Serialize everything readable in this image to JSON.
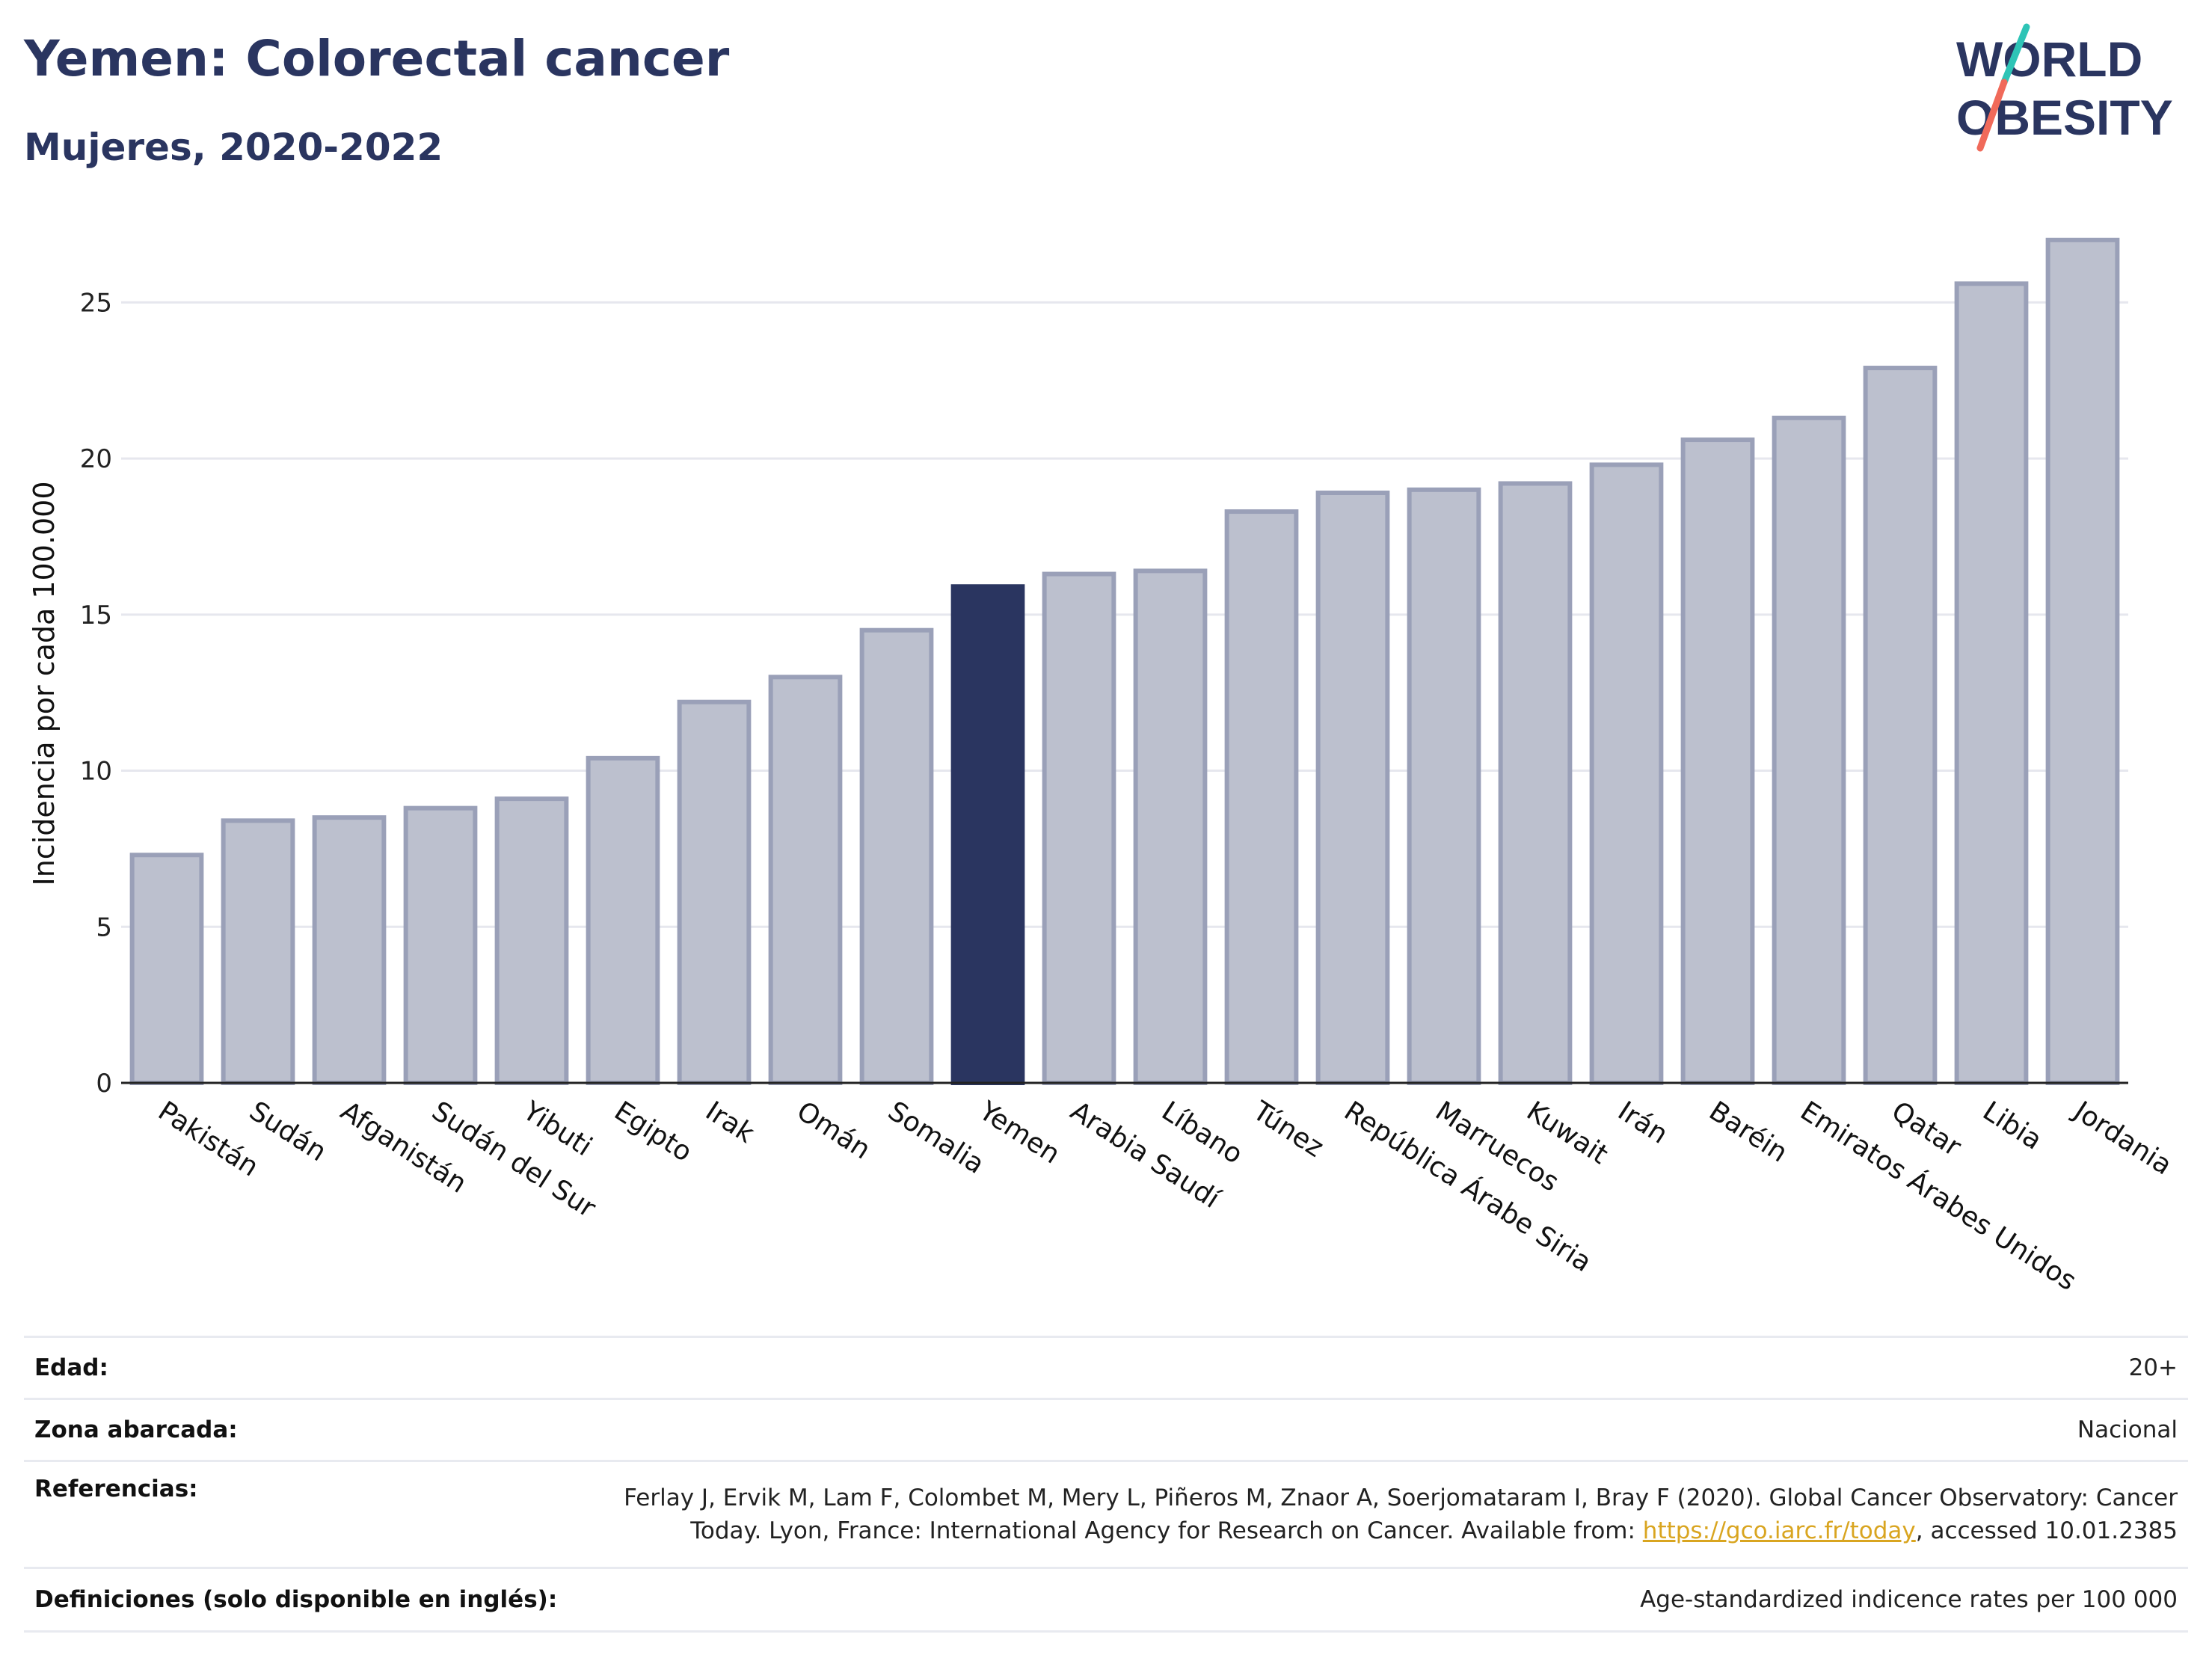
{
  "header": {
    "title": "Yemen: Colorectal cancer",
    "subtitle": "Mujeres, 2020-2022"
  },
  "logo": {
    "line1": "WORLD",
    "line2": "OBESITY",
    "slash_color_top": "#2ec4b6",
    "slash_color_bottom": "#f06a5a"
  },
  "chart_data": {
    "type": "bar",
    "ylabel": "Incidencia por cada 100.000",
    "xlabel": "",
    "ylim": [
      0,
      27.5
    ],
    "yticks": [
      0,
      5,
      10,
      15,
      20,
      25
    ],
    "grid": true,
    "highlight": "Yemen",
    "colors": {
      "default_fill": "#bcc0ce",
      "default_stroke": "#9aa0b8",
      "highlight": "#2a3560"
    },
    "categories": [
      "Pakistán",
      "Sudán",
      "Afganistán",
      "Sudán del Sur",
      "Yibuti",
      "Egipto",
      "Irak",
      "Omán",
      "Somalia",
      "Yemen",
      "Arabia Saudí",
      "Líbano",
      "Túnez",
      "República Árabe Siria",
      "Marruecos",
      "Kuwait",
      "Irán",
      "Baréin",
      "Emiratos Árabes Unidos",
      "Qatar",
      "Libia",
      "Jordania"
    ],
    "values": [
      7.3,
      8.4,
      8.5,
      8.8,
      9.1,
      10.4,
      12.2,
      13.0,
      14.5,
      15.9,
      16.3,
      16.4,
      18.3,
      18.9,
      19.0,
      19.2,
      19.8,
      20.6,
      21.3,
      22.9,
      25.6,
      27.0
    ]
  },
  "info": {
    "rows": [
      {
        "key": "Edad:",
        "value": "20+"
      },
      {
        "key": "Zona abarcada:",
        "value": "Nacional"
      },
      {
        "key": "Referencias:",
        "value_line1": "Ferlay J, Ervik M, Lam F, Colombet M, Mery L, Piñeros M, Znaor A, Soerjomataram I, Bray F (2020). Global Cancer Observatory: Cancer",
        "value_line2_pre": "Today. Lyon, France: International Agency for Research on Cancer. Available from: ",
        "link": "https://gco.iarc.fr/today",
        "value_line2_post": ", accessed 10.01.2385"
      },
      {
        "key": "Definiciones (solo disponible en inglés):",
        "value": "Age-standardized indicence rates per 100 000"
      }
    ]
  }
}
